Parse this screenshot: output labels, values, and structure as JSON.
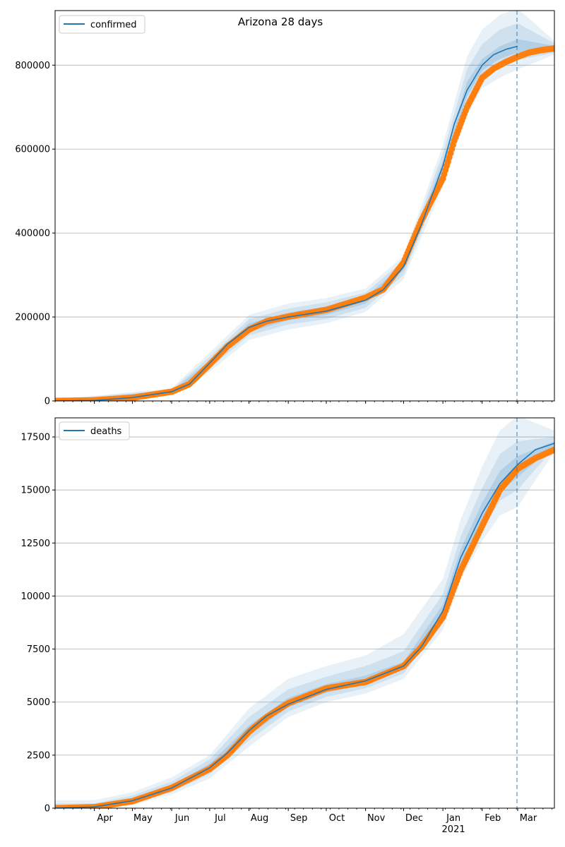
{
  "figure": {
    "title": "Arizona 28 days"
  },
  "colors": {
    "model_line": "#1f77b4",
    "observed_points": "#ff7f0e",
    "band": "#1f77b4",
    "grid": "#b0b0b0",
    "vline": "#1f77b4"
  },
  "chart_data": [
    {
      "type": "line",
      "title": "Arizona 28 days",
      "xlabel": "",
      "ylabel": "",
      "grid": "horizontal",
      "legend_position": "upper-left",
      "xlim": [
        "2020-03-01",
        "2021-03-30"
      ],
      "ylim": [
        0,
        930000
      ],
      "yticks": [
        0,
        200000,
        400000,
        600000,
        800000
      ],
      "ytick_labels": [
        "0",
        "200000",
        "400000",
        "600000",
        "800000"
      ],
      "forecast_start": "2021-03-01",
      "series": [
        {
          "name": "confirmed",
          "kind": "model_median",
          "x": [
            "2020-03-01",
            "2020-04-01",
            "2020-05-01",
            "2020-06-01",
            "2020-06-15",
            "2020-07-01",
            "2020-07-15",
            "2020-08-01",
            "2020-08-15",
            "2020-09-01",
            "2020-10-01",
            "2020-11-01",
            "2020-11-15",
            "2020-12-01",
            "2020-12-15",
            "2021-01-01",
            "2021-01-10",
            "2021-01-20",
            "2021-02-01",
            "2021-02-10",
            "2021-02-20",
            "2021-03-01"
          ],
          "values": [
            0,
            1000,
            8000,
            22000,
            40000,
            90000,
            135000,
            175000,
            190000,
            200000,
            214000,
            240000,
            265000,
            320000,
            420000,
            560000,
            660000,
            740000,
            800000,
            825000,
            838000,
            845000
          ]
        },
        {
          "name": "",
          "kind": "observed",
          "x": [
            "2020-03-01",
            "2020-04-01",
            "2020-05-01",
            "2020-06-01",
            "2020-06-15",
            "2020-07-01",
            "2020-07-15",
            "2020-08-01",
            "2020-08-15",
            "2020-09-01",
            "2020-10-01",
            "2020-11-01",
            "2020-11-15",
            "2020-12-01",
            "2020-12-15",
            "2021-01-01",
            "2021-01-10",
            "2021-01-20",
            "2021-02-01",
            "2021-02-10",
            "2021-02-20",
            "2021-03-01",
            "2021-03-10",
            "2021-03-20",
            "2021-03-30"
          ],
          "values": [
            0,
            1600,
            7600,
            22000,
            40000,
            87000,
            130000,
            170000,
            190000,
            201000,
            217000,
            246000,
            266000,
            330000,
            430000,
            530000,
            620000,
            700000,
            770000,
            792000,
            808000,
            820000,
            830000,
            836000,
            840000
          ]
        }
      ],
      "bands": [
        {
          "level": "outer",
          "x": [
            "2020-03-01",
            "2020-06-01",
            "2020-07-01",
            "2020-08-01",
            "2020-09-01",
            "2020-10-01",
            "2020-11-01",
            "2020-12-01",
            "2021-01-01",
            "2021-01-20",
            "2021-02-01",
            "2021-02-15",
            "2021-03-01",
            "2021-03-30"
          ],
          "lower": [
            0,
            14000,
            70000,
            145000,
            170000,
            185000,
            212000,
            290000,
            510000,
            680000,
            745000,
            770000,
            790000,
            825000
          ],
          "upper": [
            3000,
            30000,
            115000,
            205000,
            232000,
            245000,
            268000,
            345000,
            610000,
            820000,
            885000,
            920000,
            935000,
            858000
          ]
        },
        {
          "level": "middle",
          "x": [
            "2020-03-01",
            "2020-06-01",
            "2020-07-01",
            "2020-08-01",
            "2020-09-01",
            "2020-10-01",
            "2020-11-01",
            "2020-12-01",
            "2021-01-01",
            "2021-01-20",
            "2021-02-01",
            "2021-02-15",
            "2021-03-01",
            "2021-03-30"
          ],
          "lower": [
            0,
            17000,
            78000,
            156000,
            182000,
            195000,
            222000,
            300000,
            530000,
            705000,
            770000,
            795000,
            812000,
            830000
          ],
          "upper": [
            2000,
            27000,
            105000,
            195000,
            220000,
            235000,
            258000,
            335000,
            590000,
            790000,
            850000,
            885000,
            900000,
            852000
          ]
        },
        {
          "level": "inner",
          "x": [
            "2020-03-01",
            "2020-06-01",
            "2020-07-01",
            "2020-08-01",
            "2020-09-01",
            "2020-10-01",
            "2020-11-01",
            "2020-12-01",
            "2021-01-01",
            "2021-01-20",
            "2021-02-01",
            "2021-02-15",
            "2021-03-01",
            "2021-03-30"
          ],
          "lower": [
            0,
            20000,
            84000,
            165000,
            192000,
            205000,
            232000,
            312000,
            548000,
            725000,
            787000,
            815000,
            830000,
            834000
          ],
          "upper": [
            1000,
            24000,
            96000,
            185000,
            210000,
            225000,
            248000,
            325000,
            572000,
            760000,
            815000,
            845000,
            862000,
            846000
          ]
        }
      ]
    },
    {
      "type": "line",
      "title": "",
      "xlabel": "",
      "ylabel": "",
      "grid": "horizontal",
      "legend_position": "upper-left",
      "xlim": [
        "2020-03-01",
        "2021-03-30"
      ],
      "ylim": [
        0,
        18400
      ],
      "yticks": [
        0,
        2500,
        5000,
        7500,
        10000,
        12500,
        15000,
        17500
      ],
      "ytick_labels": [
        "0",
        "2500",
        "5000",
        "7500",
        "10000",
        "12500",
        "15000",
        "17500"
      ],
      "xtick_labels": [
        "Apr",
        "May",
        "Jun",
        "Jul",
        "Aug",
        "Sep",
        "Oct",
        "Nov",
        "Dec",
        "Jan",
        "Feb",
        "Mar"
      ],
      "xtick_sublabel": {
        "under": "Jan",
        "text": "2021"
      },
      "forecast_start": "2021-03-01",
      "series": [
        {
          "name": "deaths",
          "kind": "model_median",
          "x": [
            "2020-03-01",
            "2020-04-01",
            "2020-05-01",
            "2020-06-01",
            "2020-07-01",
            "2020-07-15",
            "2020-08-01",
            "2020-08-15",
            "2020-09-01",
            "2020-10-01",
            "2020-11-01",
            "2020-12-01",
            "2020-12-15",
            "2021-01-01",
            "2021-01-15",
            "2021-02-01",
            "2021-02-15",
            "2021-03-01",
            "2021-03-15",
            "2021-03-30"
          ],
          "values": [
            0,
            60,
            350,
            950,
            1900,
            2600,
            3650,
            4350,
            4900,
            5600,
            6000,
            6700,
            7600,
            9300,
            11800,
            13900,
            15300,
            16200,
            16900,
            17200
          ]
        },
        {
          "name": "",
          "kind": "observed",
          "x": [
            "2020-03-01",
            "2020-04-01",
            "2020-05-01",
            "2020-06-01",
            "2020-07-01",
            "2020-07-15",
            "2020-08-01",
            "2020-08-15",
            "2020-09-01",
            "2020-10-01",
            "2020-11-01",
            "2020-12-01",
            "2020-12-15",
            "2021-01-01",
            "2021-01-15",
            "2021-02-01",
            "2021-02-15",
            "2021-03-01",
            "2021-03-15",
            "2021-03-30"
          ],
          "values": [
            0,
            50,
            330,
            960,
            1850,
            2500,
            3600,
            4300,
            4950,
            5650,
            5950,
            6700,
            7600,
            9000,
            11200,
            13300,
            15000,
            16000,
            16500,
            16900
          ]
        }
      ],
      "bands": [
        {
          "level": "outer",
          "x": [
            "2020-03-01",
            "2020-04-01",
            "2020-05-01",
            "2020-06-01",
            "2020-07-01",
            "2020-08-01",
            "2020-09-01",
            "2020-10-01",
            "2020-11-01",
            "2020-12-01",
            "2021-01-01",
            "2021-01-15",
            "2021-02-01",
            "2021-02-15",
            "2021-03-01",
            "2021-03-30"
          ],
          "lower": [
            0,
            0,
            150,
            650,
            1400,
            2900,
            4300,
            5000,
            5400,
            6100,
            8400,
            10800,
            12600,
            13800,
            14200,
            16800
          ],
          "upper": [
            380,
            380,
            750,
            1450,
            2500,
            4700,
            6100,
            6700,
            7200,
            8200,
            10800,
            13600,
            16100,
            17800,
            18500,
            17800
          ]
        },
        {
          "level": "middle",
          "x": [
            "2020-03-01",
            "2020-04-01",
            "2020-05-01",
            "2020-06-01",
            "2020-07-01",
            "2020-08-01",
            "2020-09-01",
            "2020-10-01",
            "2020-11-01",
            "2020-12-01",
            "2021-01-01",
            "2021-01-15",
            "2021-02-01",
            "2021-02-15",
            "2021-03-01",
            "2021-03-30"
          ],
          "lower": [
            0,
            20,
            230,
            760,
            1600,
            3200,
            4550,
            5250,
            5650,
            6350,
            8800,
            11200,
            13100,
            14500,
            15000,
            17000
          ],
          "upper": [
            220,
            220,
            600,
            1250,
            2300,
            4300,
            5600,
            6200,
            6700,
            7400,
            10100,
            12800,
            15100,
            16700,
            17300,
            17500
          ]
        },
        {
          "level": "inner",
          "x": [
            "2020-03-01",
            "2020-04-01",
            "2020-05-01",
            "2020-06-01",
            "2020-07-01",
            "2020-08-01",
            "2020-09-01",
            "2020-10-01",
            "2020-11-01",
            "2020-12-01",
            "2021-01-01",
            "2021-01-15",
            "2021-02-01",
            "2021-02-15",
            "2021-03-01",
            "2021-03-30"
          ],
          "lower": [
            0,
            40,
            290,
            850,
            1750,
            3450,
            4750,
            5450,
            5850,
            6550,
            9100,
            11500,
            13500,
            14900,
            15600,
            17100
          ],
          "upper": [
            100,
            120,
            450,
            1080,
            2100,
            3900,
            5200,
            5850,
            6250,
            6900,
            9600,
            12200,
            14400,
            15900,
            16600,
            17300
          ]
        }
      ]
    }
  ]
}
